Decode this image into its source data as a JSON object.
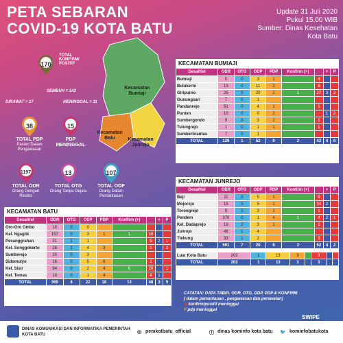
{
  "title": {
    "line1": "PETA SEBARAN",
    "line2": "COVID-19 KOTA BATU"
  },
  "update": {
    "date": "Update 31 Juli 2020",
    "time": "Pukul 15.00 WIB",
    "source1": "Sumber: Dinas Kesehatan",
    "source2": "Kota Batu"
  },
  "summary": {
    "total_konfirm": {
      "value": "170",
      "label": "TOTAL KONFIRM/ POSITIF"
    },
    "sembuh": "SEMBUH = 142",
    "dirawat": "DIRAWAT = 17",
    "meninggal": "MENINGGAL = 11",
    "pdp": {
      "value": "38",
      "label": "TOTAL PDP",
      "sub": "Pasien Dalam Pengawasan"
    },
    "pdp_meninggal": {
      "value": "15",
      "label": "PDP MENINGGAL"
    },
    "odr": {
      "value": "1197",
      "label": "TOTAL ODR",
      "sub": "Orang Dengan Resiko"
    },
    "otg": {
      "value": "13",
      "label": "TOTAL OTG",
      "sub": "Orang Tanpa Gejala"
    },
    "odp": {
      "value": "107",
      "label": "TOTAL ODP",
      "sub": "Orang Dalam Pemantauan"
    }
  },
  "map": {
    "bumiaji": "Kecamatan Bumiaji",
    "batu": "Kecamatan Batu",
    "junrejo": "Kecamatan Junrejo"
  },
  "bumiaji": {
    "title": "KECAMATAN BUMIAJI",
    "headers": [
      "Desa/Kel",
      "ODR",
      "OTG",
      "ODP",
      "PDP",
      "Konfirm (+)",
      "",
      "+",
      "P"
    ],
    "rows": [
      [
        "Bumiaji",
        "0",
        "0",
        "3",
        "1",
        "",
        "4",
        "",
        ""
      ],
      [
        "Bulukerto",
        "19",
        "0",
        "11",
        "2",
        "",
        "8",
        "",
        ""
      ],
      [
        "Giripurno",
        "25",
        "0",
        "20",
        "2",
        "1",
        "27",
        "3",
        "2"
      ],
      [
        "Gunungsari",
        "7",
        "0",
        "1",
        "",
        "",
        "",
        "",
        ""
      ],
      [
        "Pandanrejo",
        "51",
        "0",
        "4",
        "1",
        "",
        "1",
        "",
        ""
      ],
      [
        "Punten",
        "10",
        "0",
        "0",
        "2",
        "",
        "",
        "1",
        "2"
      ],
      [
        "Sumbergondo",
        "9",
        "0",
        "3",
        "2",
        "",
        "1",
        "",
        ""
      ],
      [
        "Tulungrejo",
        "1",
        "0",
        "1",
        "1",
        "",
        "1",
        "",
        ""
      ],
      [
        "Sumberbrantas",
        "7",
        "0",
        "1",
        "",
        "",
        "",
        "",
        ""
      ]
    ],
    "total": [
      "TOTAL",
      "129",
      "1",
      "52",
      "9",
      "2",
      "42",
      "4",
      "6"
    ]
  },
  "junrejo": {
    "title": "KECAMATAN JUNREJO",
    "headers": [
      "Desa/Kel",
      "ODR",
      "OTG",
      "ODP",
      "PDP",
      "Konfirm (+)",
      "",
      "+",
      "P"
    ],
    "rows": [
      [
        "Beji",
        "11",
        "0",
        "5",
        "1",
        "",
        "9",
        "",
        ""
      ],
      [
        "Mojorejo",
        "15",
        "3",
        "5",
        "1",
        "",
        "34",
        "2",
        ""
      ],
      [
        "Torongrejo",
        "9",
        "2",
        "3",
        "1",
        "",
        "1",
        "",
        ""
      ],
      [
        "Pendem",
        "370",
        "0",
        "1",
        "4",
        "1",
        "4",
        "2",
        "1"
      ],
      [
        "Kel. Dadaprejo",
        "19",
        "2",
        "3",
        "1",
        "",
        "1",
        "",
        ""
      ],
      [
        "Junrejo",
        "46",
        "1",
        "4",
        "",
        "",
        "",
        "",
        ""
      ],
      [
        "Tlekung",
        "33",
        "1",
        "2",
        "",
        "",
        "3",
        "",
        ""
      ]
    ],
    "total": [
      "TOTAL",
      "501",
      "7",
      "20",
      "8",
      "2",
      "52",
      "4",
      "2"
    ],
    "luar": [
      "Luar Kota Batu",
      "202",
      "1",
      "13",
      "3",
      "",
      "3",
      "",
      ""
    ],
    "luar_total": [
      "TOTAL",
      "202",
      "1",
      "13",
      "3",
      "",
      "3",
      "",
      ""
    ]
  },
  "batu": {
    "title": "KECAMATAN BATU",
    "headers": [
      "Desa/Kel",
      "ODR",
      "OTG",
      "ODP",
      "PDP",
      "Konfirm (+)",
      "",
      "+",
      "P"
    ],
    "rows": [
      [
        "Oro-Oro Ombo",
        "10",
        "0",
        "0",
        "",
        "",
        "",
        "",
        ""
      ],
      [
        "Kel. Ngaglik",
        "157",
        "0",
        "3",
        "1",
        "1",
        "18",
        "",
        ""
      ],
      [
        "Pesanggrahan",
        "21",
        "1",
        "1",
        "",
        "",
        "5",
        "2",
        "1"
      ],
      [
        "Kel. Songgokerto",
        "28",
        "1",
        "4",
        "3",
        "",
        "1",
        "",
        "2"
      ],
      [
        "Sumberejo",
        "20",
        "0",
        "3",
        "",
        "",
        "",
        "",
        ""
      ],
      [
        "Sidomulyo",
        "16",
        "0",
        "5",
        "6",
        "",
        "1",
        "",
        ""
      ],
      [
        "Kel. Sisir",
        "94",
        "0",
        "2",
        "4",
        "6",
        "20",
        "",
        "1"
      ],
      [
        "Kel. Temas",
        "19",
        "0",
        "1",
        "4",
        "",
        "4",
        "1",
        ""
      ]
    ],
    "total": [
      "TOTAL",
      "365",
      "4",
      "22",
      "18",
      "13",
      "48",
      "3",
      "5"
    ]
  },
  "notes": {
    "line1": "CATATAN: DATA TABEL ODR, OTG, ODP, PDP & KONFIRM",
    "line2": "( dalam pemantauan , pengawasan dan perawatan)",
    "line3": "konfirm/positif meninggal",
    "line4": "pdp meninggal"
  },
  "swipe": "SWIPE",
  "footer": {
    "agency": "DINAS KOMUNIKASI DAN INFORMATIKA PEMERINTAH KOTA BATU",
    "ig": "pemkotbatu_official",
    "fb": "dinas kominfo kota batu",
    "tw": "kominfobatukota"
  },
  "colors": {
    "konfirm": "#7a6b3f",
    "pdp": "#e8923a",
    "odr": "#c7356f",
    "otg": "#c74fa0",
    "odp": "#3aa1c9"
  }
}
